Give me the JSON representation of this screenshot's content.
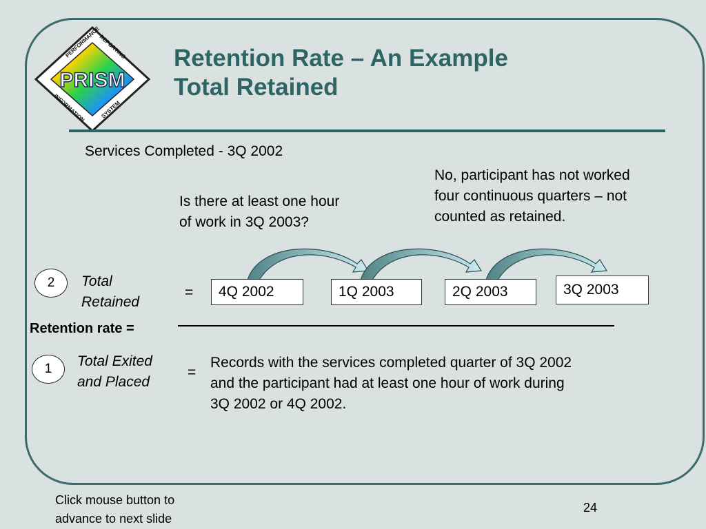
{
  "slide": {
    "title_line1": "Retention Rate – An Example",
    "title_line2": "Total Retained",
    "logo": {
      "name": "PRISM",
      "top_text": "PERFORMANCE REPORTING",
      "bottom_text": "INFORMATION SYSTEM"
    },
    "services_completed": "Services Completed - 3Q 2002",
    "question": [
      "Is there at least one hour",
      "of work in 3Q 2003?"
    ],
    "answer": [
      "No, participant has not worked",
      "four continuous quarters – not",
      "counted as retained."
    ],
    "numerator": {
      "number": "2",
      "label_line1": "Total",
      "label_line2": "Retained",
      "equals": "=",
      "quarters": [
        "4Q 2002",
        "1Q 2003",
        "2Q 2003",
        "3Q 2003"
      ]
    },
    "retention_label": "Retention rate =",
    "denominator": {
      "number": "1",
      "label_line1": "Total Exited",
      "label_line2": "and Placed",
      "equals": "=",
      "definition": [
        "Records with the services completed quarter of 3Q 2002",
        "and the participant had at least one hour of work during",
        "3Q 2002 or 4Q 2002."
      ]
    },
    "footer_hint": [
      "Click mouse button to",
      "advance to next slide"
    ],
    "page_number": "24",
    "colors": {
      "title": "#2f6464",
      "frame": "#3d6b6b",
      "background": "#d9e1e1",
      "arrow_fill": "#6fa3a6"
    }
  }
}
